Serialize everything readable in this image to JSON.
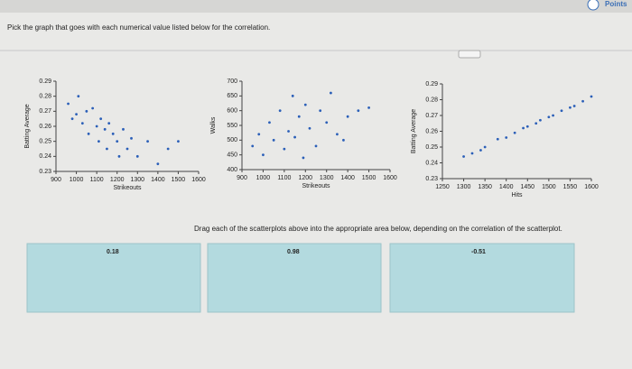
{
  "header": {
    "points_label": "Points"
  },
  "question": "Pick the graph that goes with each numerical value listed below for the correlation.",
  "charts": [
    {
      "type": "scatter",
      "xlabel": "Strikeouts",
      "ylabel": "Batting Average",
      "color": "#2b5fb8",
      "xlim": [
        900,
        1600
      ],
      "xticks": [
        900,
        1000,
        1100,
        1200,
        1300,
        1400,
        1500,
        1600
      ],
      "ylim": [
        0.23,
        0.29
      ],
      "yticks": [
        0.23,
        0.24,
        0.25,
        0.26,
        0.27,
        0.28,
        0.29
      ],
      "x": [
        960,
        980,
        1000,
        1010,
        1030,
        1050,
        1060,
        1080,
        1100,
        1110,
        1120,
        1140,
        1150,
        1160,
        1180,
        1200,
        1210,
        1230,
        1250,
        1270,
        1300,
        1350,
        1400,
        1450,
        1500
      ],
      "y": [
        0.275,
        0.265,
        0.268,
        0.28,
        0.262,
        0.27,
        0.255,
        0.272,
        0.26,
        0.25,
        0.265,
        0.258,
        0.245,
        0.262,
        0.255,
        0.25,
        0.24,
        0.258,
        0.245,
        0.252,
        0.24,
        0.25,
        0.235,
        0.245,
        0.25
      ]
    },
    {
      "type": "scatter",
      "xlabel": "Strikeouts",
      "ylabel": "Walks",
      "color": "#2b5fb8",
      "xlim": [
        900,
        1600
      ],
      "xticks": [
        900,
        1000,
        1100,
        1200,
        1300,
        1400,
        1500,
        1600
      ],
      "ylim": [
        400,
        700
      ],
      "yticks": [
        400,
        450,
        500,
        550,
        600,
        650,
        700
      ],
      "x": [
        950,
        980,
        1000,
        1030,
        1050,
        1080,
        1100,
        1120,
        1140,
        1150,
        1170,
        1190,
        1200,
        1220,
        1250,
        1270,
        1300,
        1320,
        1350,
        1380,
        1400,
        1450,
        1500
      ],
      "y": [
        480,
        520,
        450,
        560,
        500,
        600,
        470,
        530,
        650,
        510,
        580,
        440,
        620,
        540,
        480,
        600,
        560,
        660,
        520,
        500,
        580,
        600,
        610
      ]
    },
    {
      "type": "scatter",
      "xlabel": "Hits",
      "ylabel": "Batting Average",
      "color": "#2b5fb8",
      "xlim": [
        1250,
        1600
      ],
      "xticks": [
        1250,
        1300,
        1350,
        1400,
        1450,
        1500,
        1550,
        1600
      ],
      "ylim": [
        0.23,
        0.29
      ],
      "yticks": [
        0.23,
        0.24,
        0.25,
        0.26,
        0.27,
        0.28,
        0.29
      ],
      "x": [
        1300,
        1320,
        1340,
        1350,
        1380,
        1400,
        1420,
        1440,
        1450,
        1470,
        1480,
        1500,
        1510,
        1530,
        1550,
        1560,
        1580,
        1600
      ],
      "y": [
        0.244,
        0.246,
        0.248,
        0.25,
        0.255,
        0.256,
        0.259,
        0.262,
        0.263,
        0.265,
        0.267,
        0.269,
        0.27,
        0.273,
        0.275,
        0.276,
        0.279,
        0.282
      ]
    }
  ],
  "instruction": "Drag each of the scatterplots above into the appropriate area below, depending on the correlation of the scatterplot.",
  "drop_zones": [
    "0.18",
    "0.98",
    "-0.51"
  ]
}
